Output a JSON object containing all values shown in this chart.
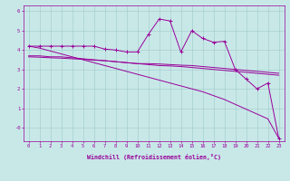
{
  "xlabel": "Windchill (Refroidissement éolien,°C)",
  "x": [
    0,
    1,
    2,
    3,
    4,
    5,
    6,
    7,
    8,
    9,
    10,
    11,
    12,
    13,
    14,
    15,
    16,
    17,
    18,
    19,
    20,
    21,
    22,
    23
  ],
  "line1": [
    4.2,
    4.2,
    4.2,
    4.2,
    4.2,
    4.2,
    4.2,
    4.05,
    4.0,
    3.9,
    3.9,
    4.8,
    5.6,
    5.5,
    3.9,
    5.0,
    4.6,
    4.4,
    4.45,
    3.0,
    2.5,
    2.0,
    2.3,
    -0.55
  ],
  "line2": [
    3.7,
    3.7,
    3.65,
    3.65,
    3.6,
    3.55,
    3.5,
    3.45,
    3.4,
    3.35,
    3.3,
    3.3,
    3.28,
    3.25,
    3.22,
    3.2,
    3.15,
    3.1,
    3.05,
    3.0,
    2.95,
    2.9,
    2.85,
    2.8
  ],
  "line3": [
    3.65,
    3.63,
    3.6,
    3.58,
    3.55,
    3.52,
    3.48,
    3.45,
    3.4,
    3.35,
    3.3,
    3.25,
    3.2,
    3.18,
    3.15,
    3.1,
    3.05,
    3.0,
    2.95,
    2.9,
    2.85,
    2.8,
    2.75,
    2.7
  ],
  "line4": [
    4.2,
    4.1,
    3.95,
    3.8,
    3.65,
    3.5,
    3.35,
    3.2,
    3.05,
    2.9,
    2.75,
    2.6,
    2.45,
    2.3,
    2.15,
    2.0,
    1.85,
    1.65,
    1.45,
    1.2,
    0.95,
    0.7,
    0.45,
    -0.55
  ],
  "color": "#990099",
  "bg_color": "#c8e8e8",
  "grid_color": "#a0c8c8",
  "ylim": [
    -0.7,
    6.3
  ],
  "xlim": [
    -0.5,
    23.5
  ],
  "yticks": [
    0,
    1,
    2,
    3,
    4,
    5,
    6
  ],
  "ytick_labels": [
    "-0",
    "1",
    "2",
    "3",
    "4",
    "5",
    "6"
  ],
  "xticks": [
    0,
    1,
    2,
    3,
    4,
    5,
    6,
    7,
    8,
    9,
    10,
    11,
    12,
    13,
    14,
    15,
    16,
    17,
    18,
    19,
    20,
    21,
    22,
    23
  ],
  "marker": "+",
  "linewidth": 0.7,
  "markersize": 3.0,
  "markeredgewidth": 0.7,
  "tick_fontsize": 4.0,
  "xlabel_fontsize": 4.8,
  "xlabel_fontweight": "bold"
}
